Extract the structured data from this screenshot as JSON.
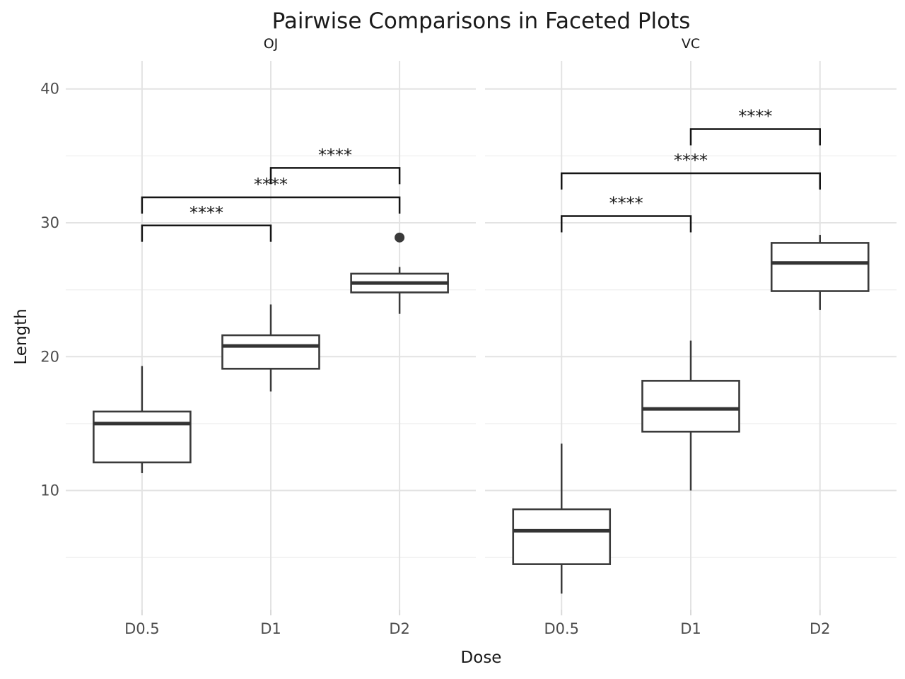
{
  "title": "Pairwise Comparisons in Faceted Plots",
  "axes": {
    "x_title": "Dose",
    "y_title": "Length"
  },
  "colors": {
    "background": "#ffffff",
    "box_stroke": "#3a3a3a",
    "box_fill": "#ffffff",
    "median": "#333333",
    "outlier": "#3a3a3a",
    "bracket": "#151515",
    "significance_text": "#1a1a1a",
    "grid_major": "#e3e3e3",
    "grid_minor": "#f2f2f2",
    "axis_tick": "#d9d9d9",
    "axis_text": "#4d4d4d",
    "text": "#1a1a1a"
  },
  "chart_data": {
    "type": "boxplot",
    "faceted": true,
    "grid": true,
    "legend": false,
    "ylim": [
      1.1,
      42.1
    ],
    "y_ticks": [
      10,
      20,
      30,
      40
    ],
    "y_minor_ticks": [
      5,
      15,
      25,
      35
    ],
    "facets": [
      {
        "label": "OJ",
        "categories": [
          "D0.5",
          "D1",
          "D2"
        ],
        "boxes": [
          {
            "category": "D0.5",
            "whisker_low": 11.3,
            "q1": 12.1,
            "median": 15.0,
            "q3": 15.9,
            "whisker_high": 19.3,
            "outliers": []
          },
          {
            "category": "D1",
            "whisker_low": 17.4,
            "q1": 19.1,
            "median": 20.8,
            "q3": 21.6,
            "whisker_high": 23.9,
            "outliers": []
          },
          {
            "category": "D2",
            "whisker_low": 23.2,
            "q1": 24.8,
            "median": 25.5,
            "q3": 26.2,
            "whisker_high": 26.7,
            "outliers": [
              28.9
            ]
          }
        ],
        "comparisons": [
          {
            "group1": "D0.5",
            "group2": "D1",
            "label": "****",
            "y": 29.8
          },
          {
            "group1": "D0.5",
            "group2": "D2",
            "label": "****",
            "y": 31.9
          },
          {
            "group1": "D1",
            "group2": "D2",
            "label": "****",
            "y": 34.1
          }
        ]
      },
      {
        "label": "VC",
        "categories": [
          "D0.5",
          "D1",
          "D2"
        ],
        "boxes": [
          {
            "category": "D0.5",
            "whisker_low": 2.3,
            "q1": 4.5,
            "median": 7.0,
            "q3": 8.6,
            "whisker_high": 13.5,
            "outliers": []
          },
          {
            "category": "D1",
            "whisker_low": 10.0,
            "q1": 14.4,
            "median": 16.1,
            "q3": 18.2,
            "whisker_high": 21.2,
            "outliers": []
          },
          {
            "category": "D2",
            "whisker_low": 23.5,
            "q1": 24.9,
            "median": 27.0,
            "q3": 28.5,
            "whisker_high": 29.1,
            "outliers": []
          }
        ],
        "comparisons": [
          {
            "group1": "D0.5",
            "group2": "D1",
            "label": "****",
            "y": 30.5
          },
          {
            "group1": "D0.5",
            "group2": "D2",
            "label": "****",
            "y": 33.7
          },
          {
            "group1": "D1",
            "group2": "D2",
            "label": "****",
            "y": 37.0
          }
        ]
      }
    ]
  }
}
